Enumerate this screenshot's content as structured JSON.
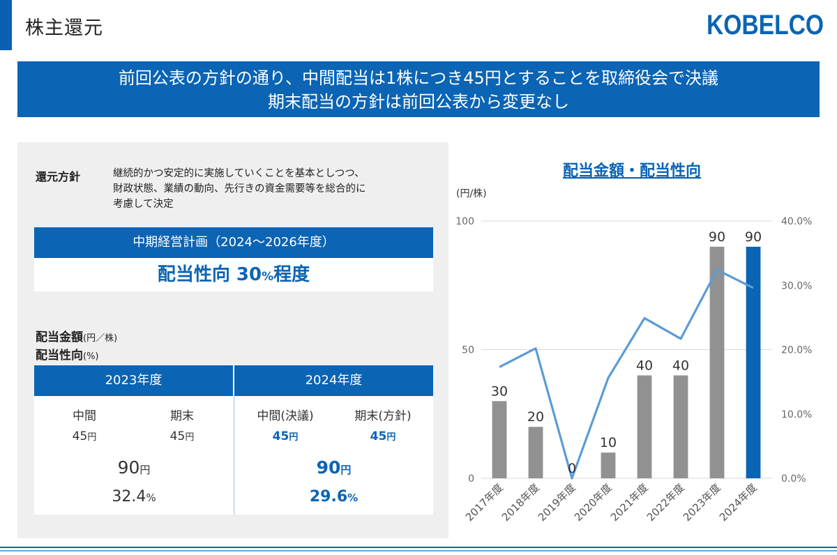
{
  "header": {
    "title": "株主還元",
    "logo_text": "KOBELCO"
  },
  "banner": {
    "line1": "前回公表の方針の通り、中間配当は1株につき45円とすることを取締役会で決議",
    "line2": "期末配当の方針は前回公表から変更なし"
  },
  "policy": {
    "label": "還元方針",
    "lines": [
      "継続的かつ安定的に実施していくことを基本としつつ、",
      "財政状態、業績の動向、先行きの資金需要等を総合的に",
      "考慮して決定"
    ]
  },
  "plan": {
    "title": "中期経営計画（2024～2026年度）",
    "value_main": "配当性向 30",
    "value_pct": "%",
    "value_tail": "程度"
  },
  "amount_label": {
    "line1": "配当金額",
    "unit1": "(円／株)",
    "line2": "配当性向",
    "unit2": "(%)"
  },
  "table": {
    "fy2023": {
      "header": "2023年度",
      "interim_label": "中間",
      "final_label": "期末",
      "interim": "45",
      "final": "45",
      "total": "90",
      "payout": "32.4",
      "yen": "円",
      "pct": "%"
    },
    "fy2024": {
      "header": "2024年度",
      "interim_label": "中間(決議)",
      "final_label": "期末(方針)",
      "interim": "45",
      "final": "45",
      "total": "90",
      "payout": "29.6",
      "yen": "円",
      "pct": "%"
    }
  },
  "chart_data": {
    "type": "bar",
    "title": "配当金額・配当性向",
    "ylabel": "(円/株)",
    "categories": [
      "2017年度",
      "2018年度",
      "2019年度",
      "2020年度",
      "2021年度",
      "2022年度",
      "2023年度",
      "2024年度"
    ],
    "series": [
      {
        "type": "bar",
        "values": [
          30,
          20,
          0,
          10,
          40,
          40,
          90,
          90
        ],
        "colors": [
          "#919191",
          "#919191",
          "#919191",
          "#919191",
          "#919191",
          "#919191",
          "#919191",
          "#0b64b4"
        ]
      },
      {
        "type": "line",
        "axis": "right",
        "values": [
          17.3,
          20.2,
          0.0,
          15.6,
          24.9,
          21.7,
          32.4,
          29.6
        ],
        "color": "#5b9bd5"
      }
    ],
    "ylim": [
      0,
      100
    ],
    "y2lim": [
      0,
      40
    ],
    "yticks": [
      "0",
      "50",
      "100"
    ],
    "y2ticks": [
      "0.0%",
      "10.0%",
      "20.0%",
      "30.0%",
      "40.0%"
    ],
    "data_labels": [
      "30",
      "20",
      "0",
      "10",
      "40",
      "40",
      "90",
      "90"
    ],
    "grid": true
  },
  "colors": {
    "brand": "#0b64b4",
    "bar_gray": "#919191",
    "line": "#5b9bd5"
  }
}
